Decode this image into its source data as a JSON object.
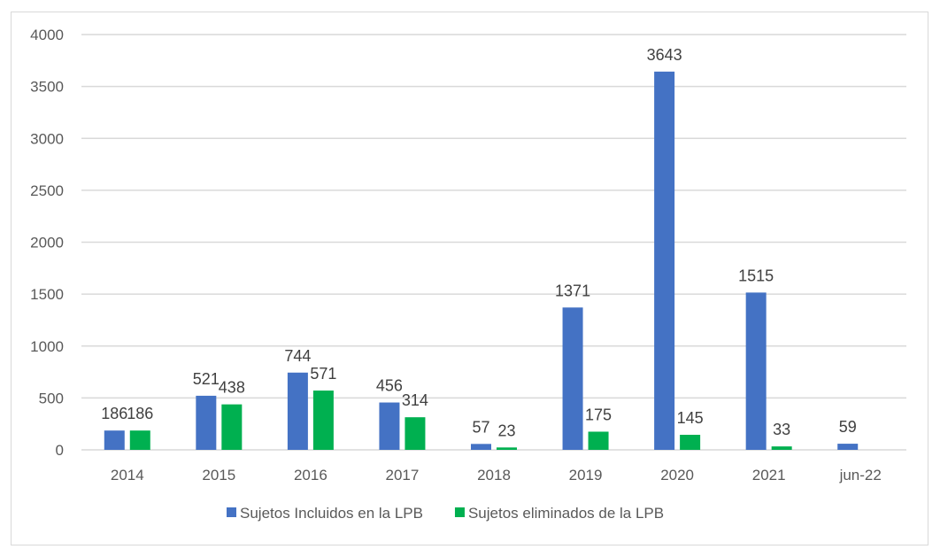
{
  "chart_data": {
    "type": "bar",
    "title": "",
    "xlabel": "",
    "ylabel": "",
    "categories": [
      "2014",
      "2015",
      "2016",
      "2017",
      "2018",
      "2019",
      "2020",
      "2021",
      "jun-22"
    ],
    "series": [
      {
        "name": "Sujetos Incluidos en la LPB",
        "color": "#4472C4",
        "values": [
          186,
          521,
          744,
          456,
          57,
          1371,
          3643,
          1515,
          59
        ]
      },
      {
        "name": "Sujetos eliminados de la LPB",
        "color": "#00B050",
        "values": [
          186,
          438,
          571,
          314,
          23,
          175,
          145,
          33,
          null
        ]
      }
    ],
    "ylim": [
      0,
      4000
    ],
    "yticks": [
      0,
      500,
      1000,
      1500,
      2000,
      2500,
      3000,
      3500,
      4000
    ],
    "grid": true,
    "legend_position": "bottom",
    "data_labels": true,
    "gridline_color": "#d9d9d9"
  }
}
